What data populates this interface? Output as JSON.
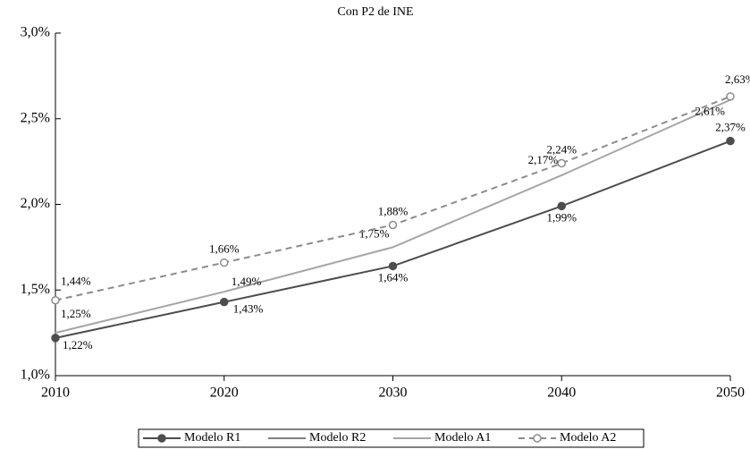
{
  "chart_data": {
    "type": "line",
    "title": "Con P2 de INE",
    "x": [
      2010,
      2020,
      2030,
      2040,
      2050
    ],
    "xlim": [
      2010,
      2050
    ],
    "xticks": [
      2010,
      2020,
      2030,
      2040,
      2050
    ],
    "ylim": [
      1.0,
      3.0
    ],
    "yticks": [
      {
        "value": 1.0,
        "label": "1,0%"
      },
      {
        "value": 1.5,
        "label": "1,5%"
      },
      {
        "value": 2.0,
        "label": "2,0%"
      },
      {
        "value": 2.5,
        "label": "2,5%"
      },
      {
        "value": 3.0,
        "label": "3,0%"
      }
    ],
    "legend": "bottom",
    "series": [
      {
        "name": "Modelo R1",
        "color": "#4d4d4d",
        "marker": "filled",
        "values": [
          1.22,
          1.43,
          1.64,
          1.99,
          2.37
        ],
        "value_labels": [
          "1,22%",
          "1,43%",
          "1,64%",
          "1,99%",
          "2,37%"
        ]
      },
      {
        "name": "Modelo R2",
        "color": "#000000",
        "values": [
          null,
          null,
          null,
          null,
          null
        ]
      },
      {
        "name": "Modelo A1",
        "color": "#a6a6a6",
        "values": [
          1.25,
          1.49,
          1.75,
          2.17,
          2.61
        ],
        "value_labels": [
          "1,25%",
          "1,49%",
          "1,75%",
          "2,17%",
          "2,61%"
        ]
      },
      {
        "name": "Modelo A2",
        "color": "#8c8c8c",
        "dashed": true,
        "marker": "open",
        "values": [
          1.44,
          1.66,
          1.88,
          2.24,
          2.63
        ],
        "value_labels": [
          "1,44%",
          "1,66%",
          "1,88%",
          "2,24%",
          "2,63%"
        ]
      }
    ]
  }
}
